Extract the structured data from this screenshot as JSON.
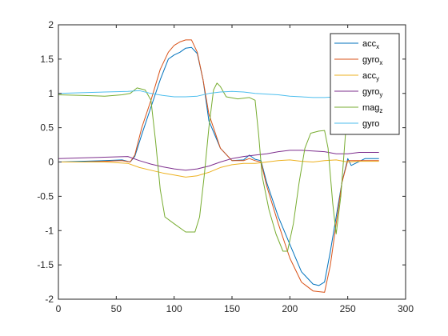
{
  "chart_data": {
    "type": "line",
    "title": "",
    "xlabel": "",
    "ylabel": "",
    "xlim": [
      0,
      300
    ],
    "ylim": [
      -2,
      2
    ],
    "xticks": [
      "0",
      "50",
      "100",
      "150",
      "200",
      "250",
      "300"
    ],
    "yticks": [
      "-2",
      "-1.5",
      "-1",
      "-0.5",
      "0",
      "0.5",
      "1",
      "1.5",
      "2"
    ],
    "grid": false,
    "legend_position": "top-right",
    "series": [
      {
        "name": "acc",
        "sub": "x",
        "color": "#0072BD",
        "points": [
          [
            0,
            0
          ],
          [
            20,
            0.01
          ],
          [
            40,
            0.02
          ],
          [
            55,
            0.03
          ],
          [
            62,
            0
          ],
          [
            66,
            0.08
          ],
          [
            72,
            0.4
          ],
          [
            80,
            0.8
          ],
          [
            88,
            1.2
          ],
          [
            95,
            1.5
          ],
          [
            100,
            1.56
          ],
          [
            105,
            1.6
          ],
          [
            110,
            1.66
          ],
          [
            115,
            1.67
          ],
          [
            120,
            1.58
          ],
          [
            125,
            1.2
          ],
          [
            130,
            0.6
          ],
          [
            140,
            0.2
          ],
          [
            150,
            0.02
          ],
          [
            160,
            0.03
          ],
          [
            165,
            0.1
          ],
          [
            170,
            0.04
          ],
          [
            175,
            0.02
          ],
          [
            180,
            -0.3
          ],
          [
            190,
            -0.8
          ],
          [
            200,
            -1.2
          ],
          [
            210,
            -1.6
          ],
          [
            220,
            -1.78
          ],
          [
            225,
            -1.8
          ],
          [
            230,
            -1.75
          ],
          [
            235,
            -1.3
          ],
          [
            240,
            -0.8
          ],
          [
            245,
            -0.3
          ],
          [
            250,
            0.05
          ],
          [
            253,
            -0.05
          ],
          [
            265,
            0.05
          ],
          [
            277,
            0.05
          ]
        ]
      },
      {
        "name": "gyro",
        "sub": "x",
        "color": "#D95319",
        "points": [
          [
            0,
            0
          ],
          [
            20,
            0
          ],
          [
            40,
            0.01
          ],
          [
            55,
            0.02
          ],
          [
            62,
            0
          ],
          [
            66,
            0.1
          ],
          [
            72,
            0.5
          ],
          [
            80,
            0.9
          ],
          [
            88,
            1.35
          ],
          [
            95,
            1.6
          ],
          [
            100,
            1.7
          ],
          [
            105,
            1.75
          ],
          [
            110,
            1.78
          ],
          [
            115,
            1.78
          ],
          [
            120,
            1.6
          ],
          [
            125,
            1.2
          ],
          [
            130,
            0.7
          ],
          [
            140,
            0.2
          ],
          [
            150,
            0.02
          ],
          [
            160,
            0.02
          ],
          [
            165,
            0.05
          ],
          [
            170,
            0.02
          ],
          [
            175,
            0
          ],
          [
            180,
            -0.35
          ],
          [
            190,
            -0.9
          ],
          [
            200,
            -1.4
          ],
          [
            210,
            -1.75
          ],
          [
            220,
            -1.88
          ],
          [
            230,
            -1.9
          ],
          [
            235,
            -1.5
          ],
          [
            240,
            -0.9
          ],
          [
            245,
            -0.3
          ],
          [
            250,
            0.02
          ],
          [
            265,
            0.02
          ],
          [
            277,
            0.02
          ]
        ]
      },
      {
        "name": "acc",
        "sub": "y",
        "color": "#EDB120",
        "points": [
          [
            0,
            0
          ],
          [
            20,
            0
          ],
          [
            40,
            0
          ],
          [
            60,
            -0.02
          ],
          [
            70,
            -0.08
          ],
          [
            80,
            -0.12
          ],
          [
            90,
            -0.16
          ],
          [
            100,
            -0.19
          ],
          [
            110,
            -0.22
          ],
          [
            120,
            -0.2
          ],
          [
            130,
            -0.15
          ],
          [
            140,
            -0.08
          ],
          [
            150,
            -0.04
          ],
          [
            160,
            -0.02
          ],
          [
            170,
            -0.02
          ],
          [
            180,
            0
          ],
          [
            190,
            0.02
          ],
          [
            200,
            0.03
          ],
          [
            210,
            0.01
          ],
          [
            220,
            0
          ],
          [
            230,
            0.02
          ],
          [
            240,
            0.03
          ],
          [
            250,
            0
          ],
          [
            260,
            0.01
          ],
          [
            277,
            0.01
          ]
        ]
      },
      {
        "name": "gyro",
        "sub": "y",
        "color": "#7E2F8E",
        "points": [
          [
            0,
            0.05
          ],
          [
            20,
            0.06
          ],
          [
            40,
            0.07
          ],
          [
            60,
            0.08
          ],
          [
            70,
            0.02
          ],
          [
            80,
            -0.03
          ],
          [
            90,
            -0.07
          ],
          [
            100,
            -0.1
          ],
          [
            110,
            -0.12
          ],
          [
            120,
            -0.1
          ],
          [
            130,
            -0.06
          ],
          [
            140,
            0
          ],
          [
            150,
            0.05
          ],
          [
            160,
            0.08
          ],
          [
            170,
            0.1
          ],
          [
            180,
            0.12
          ],
          [
            190,
            0.15
          ],
          [
            200,
            0.17
          ],
          [
            210,
            0.17
          ],
          [
            220,
            0.16
          ],
          [
            230,
            0.15
          ],
          [
            240,
            0.12
          ],
          [
            250,
            0.12
          ],
          [
            260,
            0.14
          ],
          [
            277,
            0.14
          ]
        ]
      },
      {
        "name": "mag",
        "sub": "z",
        "color": "#77AC30",
        "points": [
          [
            0,
            0.98
          ],
          [
            20,
            0.97
          ],
          [
            40,
            0.96
          ],
          [
            55,
            0.98
          ],
          [
            62,
            1.0
          ],
          [
            68,
            1.08
          ],
          [
            75,
            1.05
          ],
          [
            80,
            0.9
          ],
          [
            84,
            0.3
          ],
          [
            88,
            -0.4
          ],
          [
            92,
            -0.8
          ],
          [
            100,
            -0.9
          ],
          [
            110,
            -1.02
          ],
          [
            118,
            -1.02
          ],
          [
            122,
            -0.8
          ],
          [
            126,
            -0.2
          ],
          [
            130,
            0.5
          ],
          [
            134,
            1.05
          ],
          [
            137,
            1.15
          ],
          [
            140,
            1.1
          ],
          [
            145,
            0.95
          ],
          [
            155,
            0.92
          ],
          [
            165,
            0.94
          ],
          [
            170,
            0.9
          ],
          [
            173,
            0.4
          ],
          [
            176,
            -0.2
          ],
          [
            182,
            -0.7
          ],
          [
            188,
            -1.05
          ],
          [
            194,
            -1.3
          ],
          [
            198,
            -1.3
          ],
          [
            203,
            -0.9
          ],
          [
            208,
            -0.3
          ],
          [
            213,
            0.2
          ],
          [
            218,
            0.42
          ],
          [
            225,
            0.45
          ],
          [
            230,
            0.46
          ],
          [
            233,
            0.2
          ],
          [
            237,
            -0.6
          ],
          [
            240,
            -1.05
          ],
          [
            244,
            -0.5
          ],
          [
            248,
            0.4
          ],
          [
            252,
            0.9
          ]
        ]
      },
      {
        "name": "gyro",
        "sub": "",
        "color": "#4DBEEE",
        "points": [
          [
            0,
            1.0
          ],
          [
            20,
            1.01
          ],
          [
            40,
            1.02
          ],
          [
            60,
            1.03
          ],
          [
            70,
            1.04
          ],
          [
            80,
            1.0
          ],
          [
            90,
            0.97
          ],
          [
            100,
            0.95
          ],
          [
            110,
            0.95
          ],
          [
            120,
            0.96
          ],
          [
            130,
            1.0
          ],
          [
            140,
            1.02
          ],
          [
            150,
            1.03
          ],
          [
            160,
            1.02
          ],
          [
            170,
            1.0
          ],
          [
            180,
            0.99
          ],
          [
            190,
            0.98
          ],
          [
            200,
            0.96
          ],
          [
            210,
            0.95
          ],
          [
            220,
            0.94
          ],
          [
            230,
            0.94
          ],
          [
            240,
            0.95
          ],
          [
            250,
            0.97
          ],
          [
            260,
            0.98
          ],
          [
            277,
            0.99
          ]
        ]
      }
    ]
  }
}
